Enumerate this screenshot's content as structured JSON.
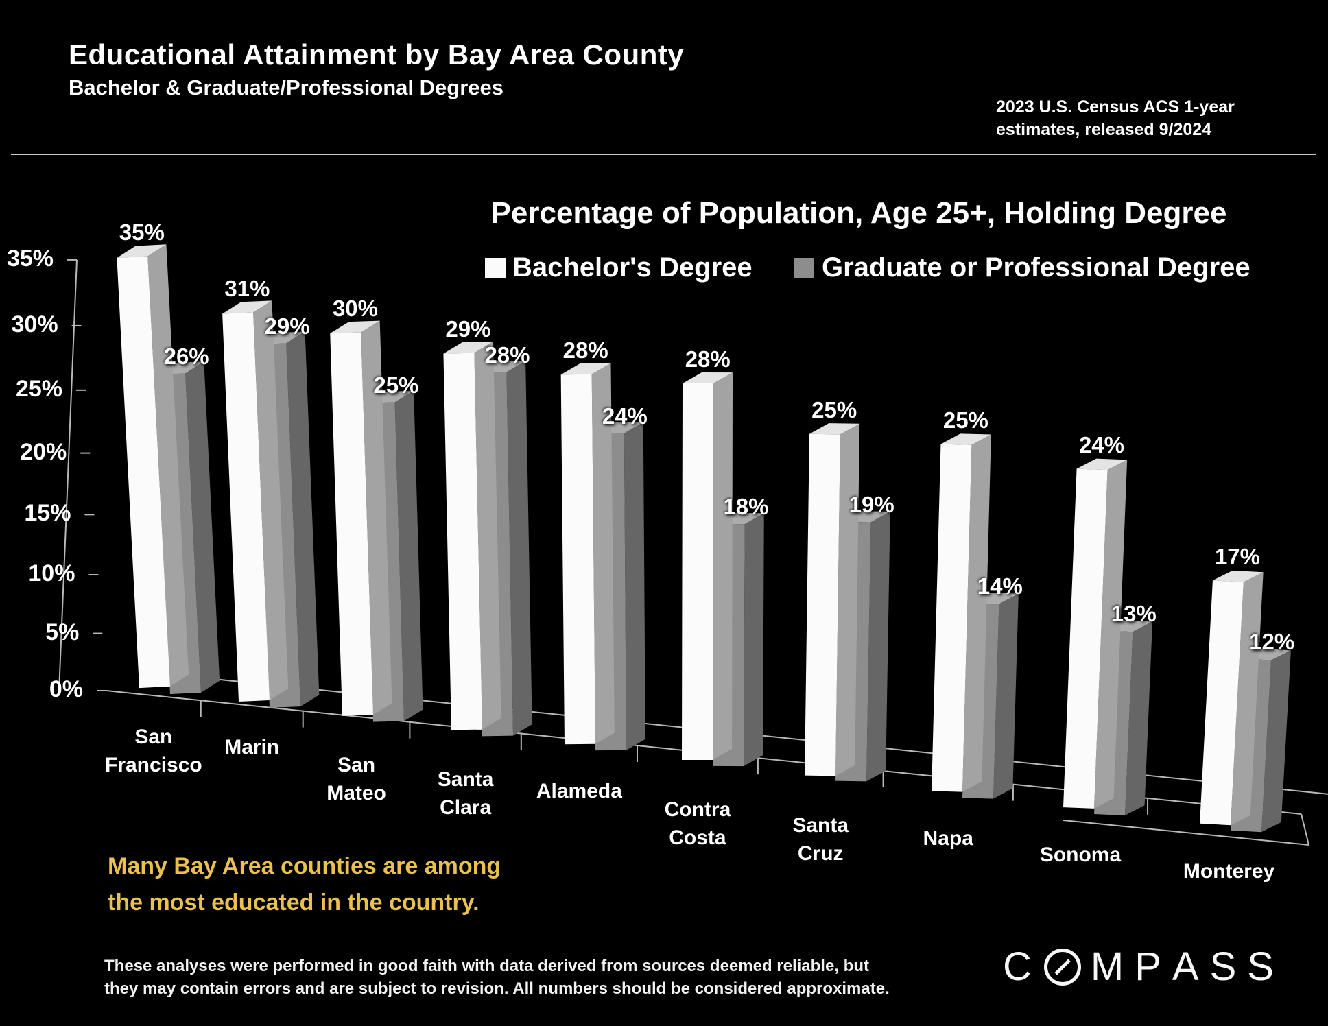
{
  "header": {
    "title": "Educational Attainment by Bay Area County",
    "subtitle": "Bachelor & Graduate/Professional Degrees",
    "source_line1": "2023 U.S. Census ACS 1-year",
    "source_line2": "estimates, released 9/2024"
  },
  "note": {
    "line1": "Many Bay Area counties are among",
    "line2": "the most educated in the country."
  },
  "disclaimer": {
    "line1": "These analyses were performed in good faith with data derived from sources deemed reliable, but",
    "line2": "they may contain errors and are subject to revision.  All numbers should be considered approximate."
  },
  "logo": {
    "text": "COMPASS"
  },
  "colors": {
    "background": "#000000",
    "axis_line": "#b8b8b8",
    "note_yellow": "#EAC14E",
    "bachelor": {
      "front": "#FBFBFB",
      "side": "#A3A3A3",
      "top": "#E4E4E4"
    },
    "graduate": {
      "front": "#8D8D8D",
      "side": "#666666",
      "top": "#ACACAC"
    }
  },
  "chart_data": {
    "type": "bar",
    "style": "3d-column",
    "title": "Percentage of Population, Age 25+, Holding Degree",
    "legend_position": "top",
    "grid": false,
    "value_suffix": "%",
    "ylim": [
      0,
      35
    ],
    "y_ticks": [
      {
        "label": "35%",
        "value": 35
      },
      {
        "label": "30%",
        "value": 30
      },
      {
        "label": "25%",
        "value": 25
      },
      {
        "label": "20%",
        "value": 20
      },
      {
        "label": "15%",
        "value": 15
      },
      {
        "label": "10%",
        "value": 10
      },
      {
        "label": "5%",
        "value": 5
      },
      {
        "label": "0%",
        "value": 0
      }
    ],
    "categories": [
      "San Francisco",
      "Marin",
      "San Mateo",
      "Santa Clara",
      "Alameda",
      "Contra Costa",
      "Santa Cruz",
      "Napa",
      "Sonoma",
      "Monterey"
    ],
    "category_lines": [
      [
        "San",
        "Francisco"
      ],
      [
        "Marin"
      ],
      [
        "San",
        "Mateo"
      ],
      [
        "Santa",
        "Clara"
      ],
      [
        "Alameda"
      ],
      [
        "Contra",
        "Costa"
      ],
      [
        "Santa",
        "Cruz"
      ],
      [
        "Napa"
      ],
      [
        "Sonoma"
      ],
      [
        "Monterey"
      ]
    ],
    "series": [
      {
        "name": "Bachelor's Degree",
        "values": [
          35,
          31,
          30,
          29,
          28,
          28,
          25,
          25,
          24,
          17
        ]
      },
      {
        "name": "Graduate or Professional Degree",
        "values": [
          26,
          29,
          25,
          28,
          24,
          18,
          19,
          14,
          13,
          12
        ]
      }
    ]
  }
}
